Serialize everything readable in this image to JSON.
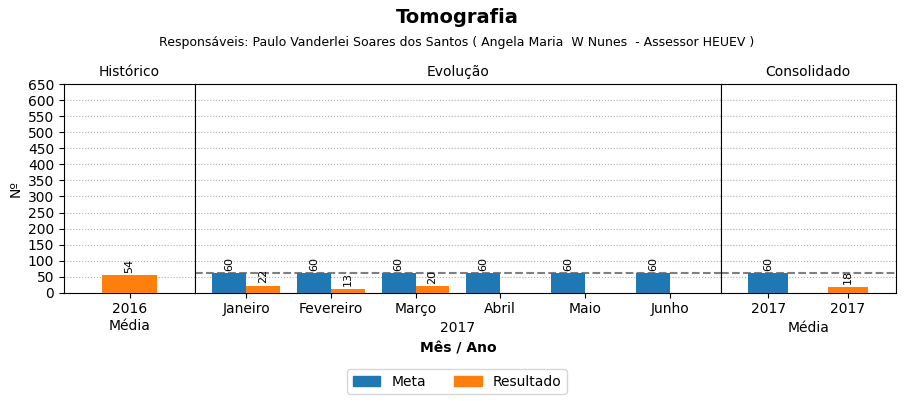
{
  "title": "Tomografia",
  "subtitle": "Responsáveis: Paulo Vanderlei Soares dos Santos ( Angela Maria  W Nunes  - Assessor HEUEV )",
  "chart_data": [
    {
      "type": "bar",
      "title": "Histórico",
      "ylabel": "Nº",
      "categories": [
        "2016\nMédia"
      ],
      "values": [
        54
      ],
      "color": "#ff7f0e",
      "ylim": [
        0,
        650
      ],
      "yticks": [
        0,
        50,
        100,
        150,
        200,
        250,
        300,
        350,
        400,
        450,
        500,
        550,
        600,
        650
      ],
      "grid": true,
      "data_labels": true
    },
    {
      "type": "bar",
      "title": "Evolução",
      "xlabel": "Mês / Ano",
      "annotations": [
        "2017"
      ],
      "categories": [
        "Janeiro",
        "Fevereiro",
        "Março",
        "Abril",
        "Maio",
        "Junho"
      ],
      "series": [
        {
          "name": "Meta",
          "color": "#1f77b4",
          "values": [
            60,
            60,
            60,
            60,
            60,
            60
          ]
        },
        {
          "name": "Resultado",
          "color": "#ff7f0e",
          "values": [
            22,
            13,
            20,
            0,
            0,
            0
          ],
          "value_labels": [
            "22",
            "13",
            "20",
            null,
            null,
            null
          ]
        }
      ],
      "reference_line": {
        "value": 60,
        "color": "#7f7f7f",
        "line_style": "dashed"
      },
      "ylim": [
        0,
        650
      ],
      "yticks": [
        0,
        50,
        100,
        150,
        200,
        250,
        300,
        350,
        400,
        450,
        500,
        550,
        600,
        650
      ],
      "grid": true,
      "data_labels": true,
      "legend": "lower center",
      "tick_labels": "x"
    },
    {
      "type": "bar",
      "title": "Consolidado",
      "annotations": [
        "Média"
      ],
      "categories": [
        "2017",
        "2017"
      ],
      "values": [
        60,
        18
      ],
      "colors": [
        "#1f77b4",
        "#ff7f0e"
      ],
      "reference_line": {
        "value": 60,
        "color": "#7f7f7f",
        "line_style": "dashed"
      },
      "ylim": [
        0,
        650
      ],
      "yticks": [
        0,
        50,
        100,
        150,
        200,
        250,
        300,
        350,
        400,
        450,
        500,
        550,
        600,
        650
      ],
      "grid": true,
      "data_labels": true,
      "tick_labels": "x"
    }
  ]
}
